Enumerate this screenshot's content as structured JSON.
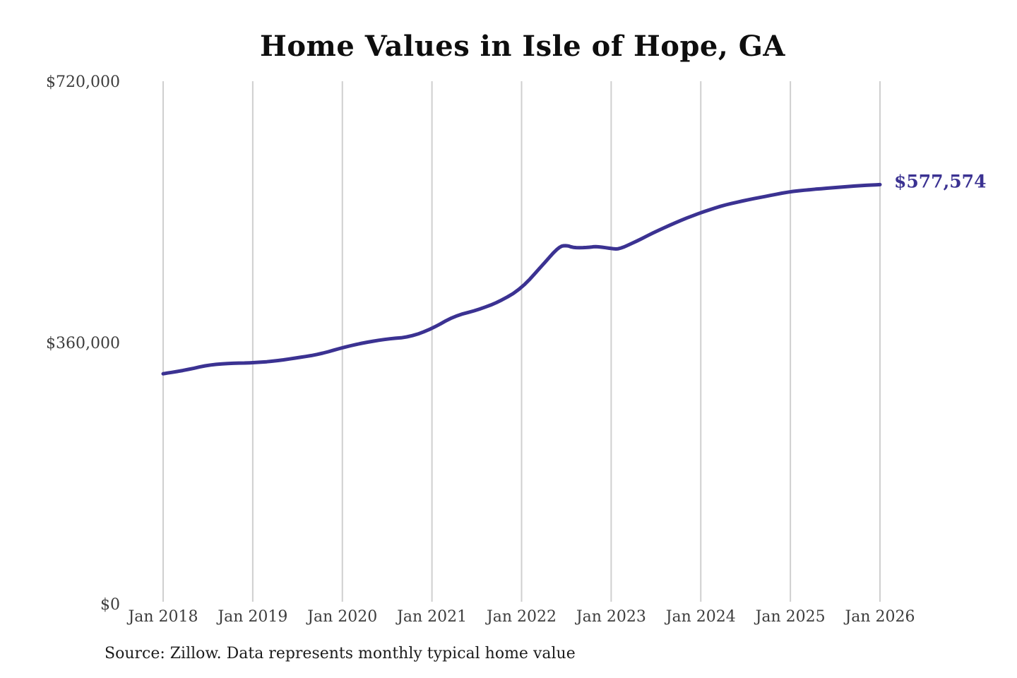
{
  "figure": {
    "title": "Home Values in Isle of Hope, GA",
    "source_note": "Source: Zillow. Data represents monthly typical home value"
  },
  "chart_data": {
    "type": "line",
    "title": "Home Values in Isle of Hope, GA",
    "xlabel": "",
    "ylabel": "",
    "ylim": [
      0,
      720000
    ],
    "grid": "vertical-only",
    "legend": "none",
    "line_color": "#3b3292",
    "label_color": "#3d3d3d",
    "title_color": "#0e0e0e",
    "grid_color": "#cfcfcf",
    "end_annotation": {
      "text": "$577,574",
      "value": 577574,
      "color": "#3b3292"
    },
    "y_ticks": [
      {
        "value": 0,
        "label": "$0"
      },
      {
        "value": 360000,
        "label": "$360,000"
      },
      {
        "value": 720000,
        "label": "$720,000"
      }
    ],
    "x_ticks": [
      "Jan 2018",
      "Jan 2019",
      "Jan 2020",
      "Jan 2021",
      "Jan 2022",
      "Jan 2023",
      "Jan 2024",
      "Jan 2025",
      "Jan 2026"
    ],
    "series": [
      {
        "name": "Monthly typical home value",
        "points": [
          [
            "2018-01",
            317000
          ],
          [
            "2018-04",
            322000
          ],
          [
            "2018-07",
            329000
          ],
          [
            "2018-10",
            331500
          ],
          [
            "2019-01",
            332000
          ],
          [
            "2019-04",
            334500
          ],
          [
            "2019-07",
            339000
          ],
          [
            "2019-10",
            344000
          ],
          [
            "2020-01",
            353000
          ],
          [
            "2020-04",
            360000
          ],
          [
            "2020-07",
            365000
          ],
          [
            "2020-10",
            367500
          ],
          [
            "2021-01",
            379000
          ],
          [
            "2021-04",
            396500
          ],
          [
            "2021-07",
            404500
          ],
          [
            "2021-10",
            416000
          ],
          [
            "2022-01",
            434500
          ],
          [
            "2022-04",
            469000
          ],
          [
            "2022-06",
            492000
          ],
          [
            "2022-07",
            494000
          ],
          [
            "2022-08",
            490500
          ],
          [
            "2022-10",
            491000
          ],
          [
            "2022-11",
            492500
          ],
          [
            "2023-01",
            489500
          ],
          [
            "2023-02",
            488500
          ],
          [
            "2023-04",
            497500
          ],
          [
            "2023-07",
            513000
          ],
          [
            "2023-10",
            527000
          ],
          [
            "2024-01",
            539000
          ],
          [
            "2024-04",
            549000
          ],
          [
            "2024-07",
            556000
          ],
          [
            "2024-10",
            562000
          ],
          [
            "2025-01",
            568000
          ],
          [
            "2025-04",
            571000
          ],
          [
            "2025-07",
            573500
          ],
          [
            "2025-10",
            576000
          ],
          [
            "2026-01",
            577574
          ]
        ]
      }
    ]
  }
}
